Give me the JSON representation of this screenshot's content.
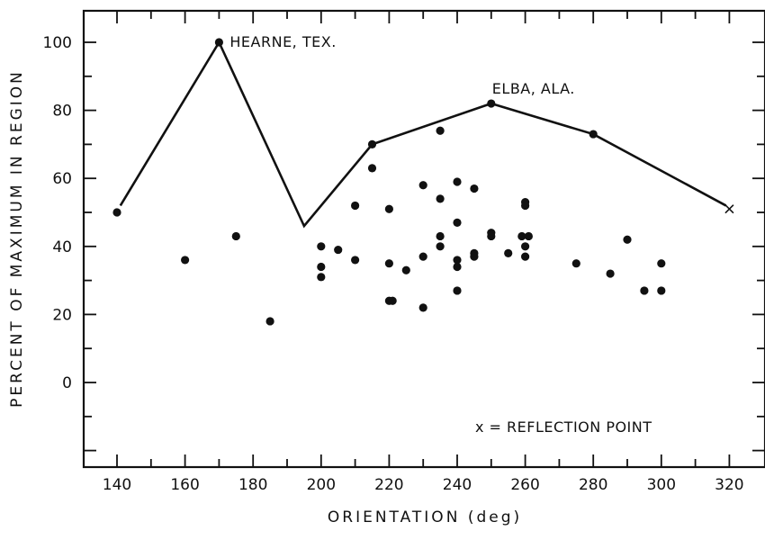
{
  "chart_data": {
    "type": "scatter",
    "title": "",
    "xlabel": "ORIENTATION (deg)",
    "ylabel": "PERCENT OF MAXIMUM IN REGION",
    "xlim": [
      130,
      322
    ],
    "ylim": [
      -20,
      110
    ],
    "x_ticks": [
      140,
      160,
      180,
      200,
      220,
      240,
      260,
      280,
      300,
      320
    ],
    "y_ticks": [
      0,
      20,
      40,
      60,
      80,
      100
    ],
    "series": [
      {
        "type": "scatter",
        "points": [
          [
            140,
            50
          ],
          [
            160,
            36
          ],
          [
            170,
            100
          ],
          [
            175,
            43
          ],
          [
            185,
            18
          ],
          [
            200,
            40
          ],
          [
            200,
            34
          ],
          [
            200,
            31
          ],
          [
            205,
            39
          ],
          [
            210,
            52
          ],
          [
            210,
            36
          ],
          [
            215,
            70
          ],
          [
            215,
            63
          ],
          [
            220,
            51
          ],
          [
            220,
            35
          ],
          [
            220,
            24
          ],
          [
            221,
            24
          ],
          [
            225,
            33
          ],
          [
            230,
            58
          ],
          [
            230,
            37
          ],
          [
            230,
            22
          ],
          [
            235,
            74
          ],
          [
            235,
            54
          ],
          [
            235,
            43
          ],
          [
            235,
            40
          ],
          [
            240,
            59
          ],
          [
            240,
            47
          ],
          [
            240,
            36
          ],
          [
            240,
            34
          ],
          [
            240,
            27
          ],
          [
            245,
            57
          ],
          [
            245,
            38
          ],
          [
            245,
            37
          ],
          [
            250,
            82
          ],
          [
            250,
            44
          ],
          [
            250,
            43
          ],
          [
            255,
            38
          ],
          [
            259,
            43
          ],
          [
            260,
            53
          ],
          [
            260,
            52
          ],
          [
            260,
            40
          ],
          [
            260,
            37
          ],
          [
            261,
            43
          ],
          [
            275,
            35
          ],
          [
            280,
            73
          ],
          [
            285,
            32
          ],
          [
            290,
            42
          ],
          [
            295,
            27
          ],
          [
            300,
            35
          ],
          [
            300,
            27
          ]
        ]
      },
      {
        "type": "line",
        "points": [
          [
            141,
            52
          ],
          [
            170,
            100
          ],
          [
            195,
            46
          ],
          [
            215,
            70
          ],
          [
            250,
            82
          ],
          [
            280,
            73
          ],
          [
            319,
            52
          ]
        ]
      }
    ],
    "reflection_points": [
      [
        320,
        51
      ]
    ],
    "annotations": [
      {
        "text": "HEARNE, TEX.",
        "x": 170,
        "y": 100
      },
      {
        "text": "ELBA, ALA.",
        "x": 250,
        "y": 82
      }
    ],
    "legend": "x = REFLECTION POINT",
    "legend_position": "bottom-right",
    "grid": false
  }
}
